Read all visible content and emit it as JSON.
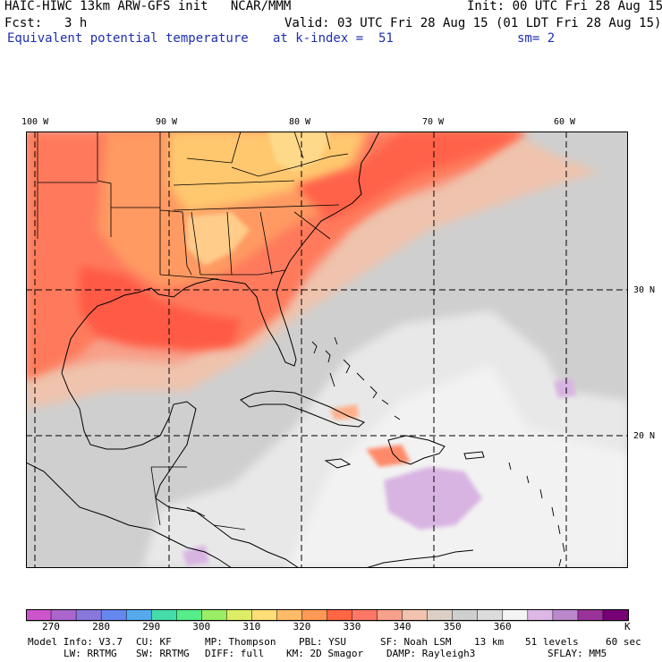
{
  "header": {
    "model_title": "HAIC-HIWC 13km ARW-GFS init   NCAR/MMM",
    "init": "Init: 00 UTC Fri 28 Aug 15",
    "fcst_label": "Fcst:",
    "fcst_value": "3 h",
    "valid": "Valid: 03 UTC Fri 28 Aug 15 (01 LDT Fri 28 Aug 15)",
    "field_name": "Equivalent potential temperature",
    "level": "at k-index =  51",
    "smoothing": "sm= 2"
  },
  "map": {
    "lon_labels": [
      "100 W",
      "90 W",
      "80 W",
      "70 W",
      "60 W"
    ],
    "lat_labels": [
      "30 N",
      "20 N"
    ]
  },
  "colorbar": {
    "colors": [
      "#cc55cc",
      "#aa66cc",
      "#8877dd",
      "#6688ee",
      "#55aaee",
      "#44ddaa",
      "#55ee88",
      "#99ee66",
      "#ddee66",
      "#ffdd77",
      "#ffbb66",
      "#ff9955",
      "#ff6644",
      "#ff7766",
      "#f7a08a",
      "#f0c4ae",
      "#dcd0c4",
      "#cfcfcf",
      "#dcdcdc",
      "#f4f4f4",
      "#ddb8e6",
      "#bb88cc",
      "#993399",
      "#770077"
    ],
    "tick_labels": [
      "270",
      "280",
      "290",
      "300",
      "310",
      "320",
      "330",
      "340",
      "350",
      "360"
    ],
    "unit": "K"
  },
  "footer": {
    "line1": [
      "Model Info: V3.7",
      "CU: KF",
      "MP: Thompson",
      "PBL: YSU",
      "SF: Noah LSM",
      "13 km",
      "51 levels",
      "60 sec"
    ],
    "line2": [
      "LW: RRTMG",
      "SW: RRTMG",
      "DIFF: full",
      "KM: 2D Smagor",
      "DAMP: Rayleigh3",
      "SFLAY: MM5"
    ]
  }
}
